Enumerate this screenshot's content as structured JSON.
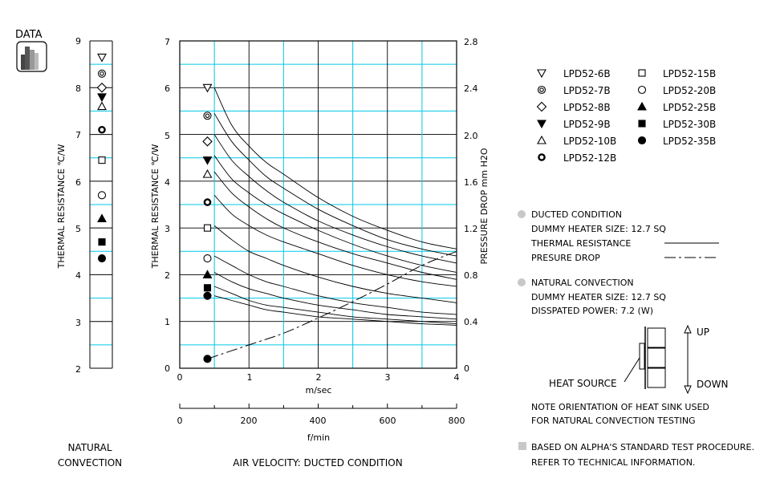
{
  "data_badge": {
    "label": "DATA"
  },
  "natural_chart": {
    "ylabel": "THERMAL RESISTANCE  ℃/W",
    "y_ticks": [
      "9",
      "8",
      "7",
      "6",
      "5",
      "4",
      "3",
      "2"
    ],
    "caption_lines": [
      "NATURAL",
      "CONVECTION"
    ]
  },
  "main_chart": {
    "ylabel_left": "THERMAL RESISTANCE  ℃/W",
    "ylabel_right": "PRESSURE DROP  mm H2O",
    "x_ticks_ms": [
      "0",
      "1",
      "2",
      "3",
      "4"
    ],
    "x_unit_ms": "m/sec",
    "x_ticks_fmin": [
      "0",
      "200",
      "400",
      "600",
      "800"
    ],
    "x_unit_fmin": "f/min",
    "y_ticks_left": [
      "0",
      "1",
      "2",
      "3",
      "4",
      "5",
      "6",
      "7"
    ],
    "y_ticks_right": [
      "0",
      "0.4",
      "0.8",
      "1.2",
      "1.6",
      "2.0",
      "2.4",
      "2.8"
    ],
    "caption": "AIR VELOCITY:  DUCTED CONDITION"
  },
  "legend": {
    "items": [
      {
        "label": "LPD52-6B",
        "marker": "triangle-down-open"
      },
      {
        "label": "LPD52-7B",
        "marker": "double-circle"
      },
      {
        "label": "LPD52-8B",
        "marker": "diamond-open"
      },
      {
        "label": "LPD52-9B",
        "marker": "triangle-down-filled"
      },
      {
        "label": "LPD52-10B",
        "marker": "triangle-up-open"
      },
      {
        "label": "LPD52-12B",
        "marker": "thick-ring"
      },
      {
        "label": "LPD52-15B",
        "marker": "square-open"
      },
      {
        "label": "LPD52-20B",
        "marker": "circle-open"
      },
      {
        "label": "LPD52-25B",
        "marker": "triangle-up-filled"
      },
      {
        "label": "LPD52-30B",
        "marker": "square-filled"
      },
      {
        "label": "LPD52-35B",
        "marker": "circle-filled"
      }
    ]
  },
  "notes": {
    "ducted_title": "DUCTED CONDITION",
    "ducted_heater": "DUMMY HEATER SIZE: 12.7 SQ",
    "thermal_resistance": "THERMAL RESISTANCE",
    "pressure_drop": "PRESURE DROP",
    "natural_title": "NATURAL CONVECTION",
    "natural_heater": "DUMMY HEATER SIZE: 12.7 SQ",
    "natural_power": "DISSPATED POWER: 7.2 (W)",
    "up": "UP",
    "down": "DOWN",
    "heat_source": "HEAT SOURCE",
    "orientation_1": "NOTE ORIENTATION OF HEAT SINK USED",
    "orientation_2": "FOR NATURAL CONVECTION TESTING",
    "procedure_1": "BASED ON ALPHA'S STANDARD TEST PROCEDURE.",
    "procedure_2": "REFER TO TECHNICAL INFORMATION."
  },
  "colors": {
    "grid": "#00c8e8",
    "ink": "#000000",
    "bullet": "#c8c8c8"
  },
  "chart_data": [
    {
      "type": "scatter",
      "ylabel": "THERMAL RESISTANCE  ℃/W",
      "ylim": [
        2,
        9
      ],
      "grid": true,
      "points": [
        {
          "series": "LPD52-6B",
          "y": 8.65
        },
        {
          "series": "LPD52-7B",
          "y": 8.3
        },
        {
          "series": "LPD52-8B",
          "y": 8.0
        },
        {
          "series": "LPD52-9B",
          "y": 7.8
        },
        {
          "series": "LPD52-10B",
          "y": 7.6
        },
        {
          "series": "LPD52-12B",
          "y": 7.1
        },
        {
          "series": "LPD52-15B",
          "y": 6.45
        },
        {
          "series": "LPD52-20B",
          "y": 5.7
        },
        {
          "series": "LPD52-25B",
          "y": 5.2
        },
        {
          "series": "LPD52-30B",
          "y": 4.7
        },
        {
          "series": "LPD52-35B",
          "y": 4.35
        }
      ]
    },
    {
      "type": "line",
      "xlabel": "m/sec",
      "xlim": [
        0,
        4
      ],
      "ylim": [
        0,
        7
      ],
      "y2label": "PRESSURE DROP  mm H2O",
      "y2lim": [
        0,
        2.8
      ],
      "secondary_x": {
        "label": "f/min",
        "lim": [
          0,
          800
        ]
      },
      "grid": true,
      "x": [
        0.5,
        0.75,
        1.0,
        1.25,
        1.5,
        2.0,
        2.5,
        3.0,
        3.5,
        4.0
      ],
      "series": [
        {
          "name": "LPD52-6B",
          "marker": "triangle-down-open",
          "marker_x": 0.4,
          "marker_y": 6.0,
          "values": [
            6.0,
            5.2,
            4.75,
            4.4,
            4.15,
            3.65,
            3.25,
            2.95,
            2.7,
            2.55
          ]
        },
        {
          "name": "LPD52-7B",
          "marker": "double-circle",
          "marker_x": 0.4,
          "marker_y": 5.4,
          "values": [
            5.45,
            4.85,
            4.45,
            4.1,
            3.85,
            3.4,
            3.05,
            2.75,
            2.55,
            2.4
          ]
        },
        {
          "name": "LPD52-8B",
          "marker": "diamond-open",
          "marker_x": 0.4,
          "marker_y": 4.85,
          "values": [
            5.0,
            4.45,
            4.1,
            3.8,
            3.55,
            3.15,
            2.85,
            2.6,
            2.4,
            2.25
          ]
        },
        {
          "name": "LPD52-9B",
          "marker": "triangle-down-filled",
          "marker_x": 0.4,
          "marker_y": 4.45,
          "values": [
            4.55,
            4.05,
            3.75,
            3.5,
            3.3,
            2.95,
            2.65,
            2.4,
            2.2,
            2.05
          ]
        },
        {
          "name": "LPD52-10B",
          "marker": "triangle-up-open",
          "marker_x": 0.4,
          "marker_y": 4.15,
          "values": [
            4.2,
            3.75,
            3.45,
            3.2,
            3.0,
            2.7,
            2.45,
            2.25,
            2.05,
            1.9
          ]
        },
        {
          "name": "LPD52-12B",
          "marker": "thick-ring",
          "marker_x": 0.4,
          "marker_y": 3.55,
          "values": [
            3.7,
            3.3,
            3.05,
            2.85,
            2.7,
            2.45,
            2.2,
            2.0,
            1.85,
            1.75
          ]
        },
        {
          "name": "LPD52-15B",
          "marker": "square-open",
          "marker_x": 0.4,
          "marker_y": 3.0,
          "values": [
            3.05,
            2.75,
            2.5,
            2.35,
            2.2,
            1.95,
            1.75,
            1.6,
            1.5,
            1.4
          ]
        },
        {
          "name": "LPD52-20B",
          "marker": "circle-open",
          "marker_x": 0.4,
          "marker_y": 2.35,
          "values": [
            2.4,
            2.2,
            2.0,
            1.85,
            1.75,
            1.55,
            1.4,
            1.3,
            1.2,
            1.15
          ]
        },
        {
          "name": "LPD52-25B",
          "marker": "triangle-up-filled",
          "marker_x": 0.4,
          "marker_y": 2.0,
          "values": [
            2.05,
            1.85,
            1.7,
            1.6,
            1.5,
            1.35,
            1.25,
            1.15,
            1.1,
            1.05
          ]
        },
        {
          "name": "LPD52-30B",
          "marker": "square-filled",
          "marker_x": 0.4,
          "marker_y": 1.72,
          "values": [
            1.75,
            1.6,
            1.45,
            1.35,
            1.3,
            1.2,
            1.1,
            1.05,
            1.0,
            0.95
          ]
        },
        {
          "name": "LPD52-35B",
          "marker": "circle-filled",
          "marker_x": 0.4,
          "marker_y": 1.55,
          "values": [
            1.55,
            1.45,
            1.35,
            1.25,
            1.2,
            1.1,
            1.05,
            1.0,
            0.95,
            0.92
          ]
        }
      ],
      "pressure_drop": {
        "axis": "right",
        "marker": "circle-filled",
        "x": [
          0.4,
          1.0,
          1.5,
          2.0,
          2.5,
          3.0,
          3.5,
          4.0
        ],
        "values": [
          0.08,
          0.2,
          0.3,
          0.43,
          0.57,
          0.72,
          0.88,
          1.0
        ]
      }
    }
  ]
}
